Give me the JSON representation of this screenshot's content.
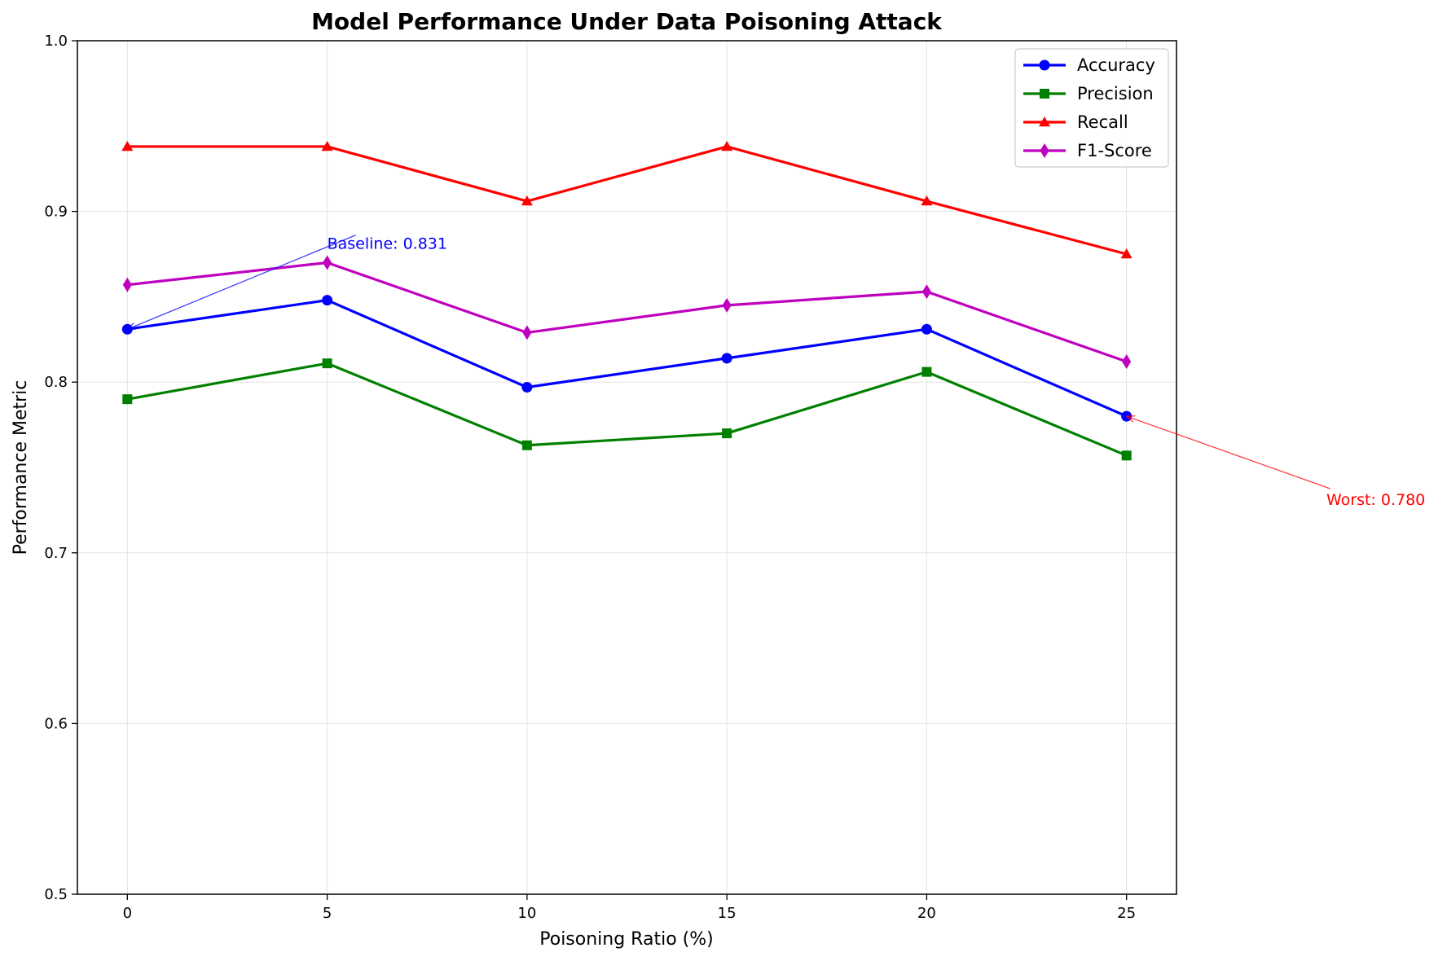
{
  "chart_data": {
    "type": "line",
    "title": "Model Performance Under Data Poisoning Attack",
    "xlabel": "Poisoning Ratio (%)",
    "ylabel": "Performance Metric",
    "x": [
      0,
      5,
      10,
      15,
      20,
      25
    ],
    "x_ticks": [
      "0",
      "5",
      "10",
      "15",
      "20",
      "25"
    ],
    "y_ticks": [
      "0.5",
      "0.6",
      "0.7",
      "0.8",
      "0.9",
      "1.0"
    ],
    "xlim": [
      -1.25,
      26.25
    ],
    "ylim": [
      0.5,
      1.0
    ],
    "grid": true,
    "legend_position": "top-right",
    "series": [
      {
        "name": "Accuracy",
        "color": "#0000ff",
        "marker": "circle",
        "values": [
          0.831,
          0.848,
          0.797,
          0.814,
          0.831,
          0.78
        ]
      },
      {
        "name": "Precision",
        "color": "#008000",
        "marker": "square",
        "values": [
          0.79,
          0.811,
          0.763,
          0.77,
          0.806,
          0.757
        ]
      },
      {
        "name": "Recall",
        "color": "#ff0000",
        "marker": "triangle",
        "values": [
          0.938,
          0.938,
          0.906,
          0.938,
          0.906,
          0.875
        ]
      },
      {
        "name": "F1-Score",
        "color": "#bf00bf",
        "marker": "diamond",
        "values": [
          0.857,
          0.87,
          0.829,
          0.845,
          0.853,
          0.812
        ]
      }
    ],
    "annotations": [
      {
        "text": "Baseline: 0.831",
        "color": "#0000ff",
        "point": [
          0,
          0.831
        ],
        "text_pos": [
          5,
          0.878
        ]
      },
      {
        "text": "Worst: 0.780",
        "color": "#ff0000",
        "point": [
          25,
          0.78
        ],
        "text_pos": [
          30,
          0.728
        ]
      }
    ]
  }
}
